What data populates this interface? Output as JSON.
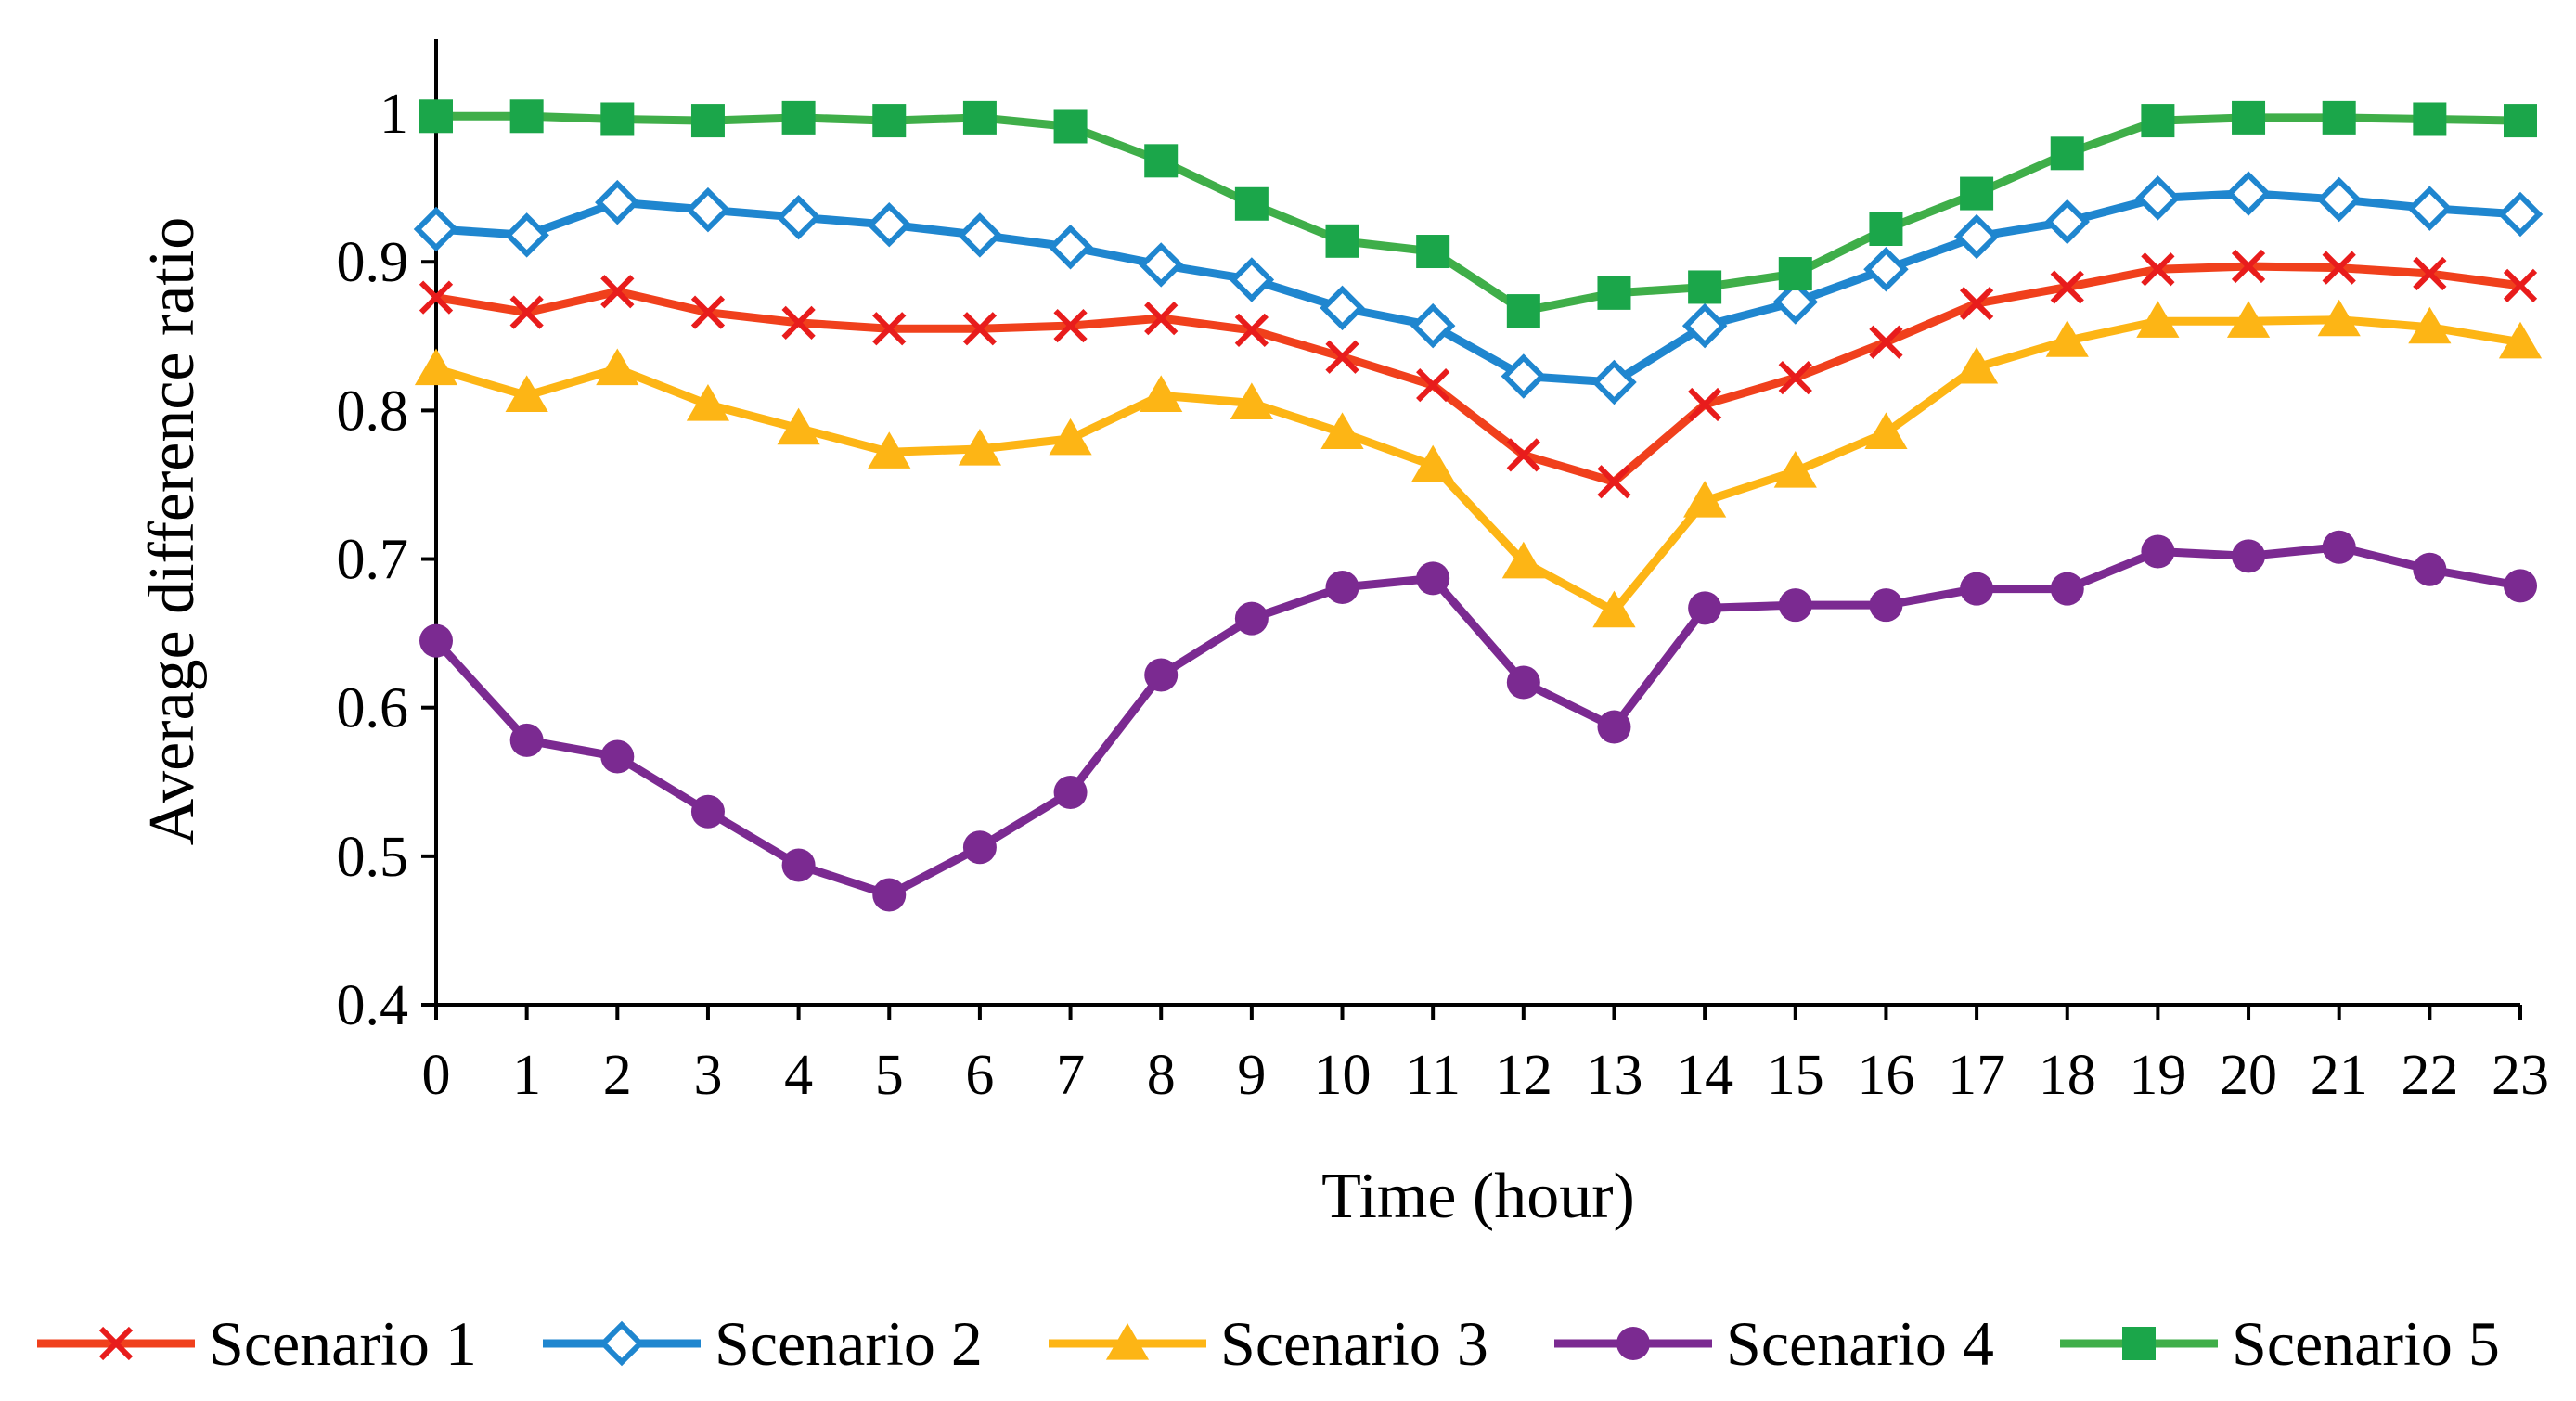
{
  "chart_data": {
    "type": "line",
    "title": "",
    "xlabel": "Time (hour)",
    "ylabel": "Average difference ratio",
    "x": [
      0,
      1,
      2,
      3,
      4,
      5,
      6,
      7,
      8,
      9,
      10,
      11,
      12,
      13,
      14,
      15,
      16,
      17,
      18,
      19,
      20,
      21,
      22,
      23
    ],
    "xtick_labels": [
      "0",
      "1",
      "2",
      "3",
      "4",
      "5",
      "6",
      "7",
      "8",
      "9",
      "10",
      "11",
      "12",
      "13",
      "14",
      "15",
      "16",
      "17",
      "18",
      "19",
      "20",
      "21",
      "22",
      "23"
    ],
    "ylim": [
      0.4,
      1.05
    ],
    "yticks": [
      0.4,
      0.5,
      0.6,
      0.7,
      0.8,
      0.9,
      1
    ],
    "ytick_labels": [
      "0.4",
      "0.5",
      "0.6",
      "0.7",
      "0.8",
      "0.9",
      "1"
    ],
    "grid": false,
    "legend_position": "bottom",
    "series": [
      {
        "name": "Scenario 1",
        "color": "#f0401c",
        "marker_color": "#e81c1c",
        "marker": "x",
        "values": [
          0.876,
          0.866,
          0.88,
          0.866,
          0.859,
          0.855,
          0.855,
          0.857,
          0.862,
          0.854,
          0.836,
          0.817,
          0.77,
          0.752,
          0.804,
          0.822,
          0.846,
          0.872,
          0.883,
          0.895,
          0.897,
          0.896,
          0.892,
          0.884
        ]
      },
      {
        "name": "Scenario 2",
        "color": "#1f86cf",
        "marker_color": "#1f86cf",
        "marker": "diamond",
        "values": [
          0.922,
          0.918,
          0.94,
          0.935,
          0.93,
          0.925,
          0.918,
          0.91,
          0.898,
          0.888,
          0.869,
          0.857,
          0.823,
          0.819,
          0.857,
          0.873,
          0.895,
          0.917,
          0.927,
          0.943,
          0.946,
          0.942,
          0.936,
          0.932
        ]
      },
      {
        "name": "Scenario 3",
        "color": "#fdb515",
        "marker_color": "#fdb515",
        "marker": "triangle",
        "values": [
          0.828,
          0.81,
          0.828,
          0.804,
          0.788,
          0.772,
          0.774,
          0.781,
          0.81,
          0.805,
          0.785,
          0.763,
          0.698,
          0.665,
          0.739,
          0.759,
          0.785,
          0.829,
          0.847,
          0.86,
          0.86,
          0.861,
          0.856,
          0.846
        ]
      },
      {
        "name": "Scenario 4",
        "color": "#7b2a91",
        "marker_color": "#7b2a91",
        "marker": "circle",
        "values": [
          0.645,
          0.578,
          0.567,
          0.53,
          0.494,
          0.474,
          0.506,
          0.543,
          0.622,
          0.66,
          0.681,
          0.687,
          0.617,
          0.587,
          0.667,
          0.669,
          0.669,
          0.68,
          0.68,
          0.705,
          0.702,
          0.708,
          0.693,
          0.682
        ]
      },
      {
        "name": "Scenario 5",
        "color": "#3fae49",
        "marker_color": "#1ba64a",
        "marker": "square",
        "values": [
          0.998,
          0.998,
          0.996,
          0.995,
          0.997,
          0.995,
          0.997,
          0.991,
          0.968,
          0.939,
          0.914,
          0.907,
          0.867,
          0.879,
          0.883,
          0.892,
          0.922,
          0.946,
          0.973,
          0.995,
          0.997,
          0.997,
          0.996,
          0.995
        ]
      }
    ]
  }
}
